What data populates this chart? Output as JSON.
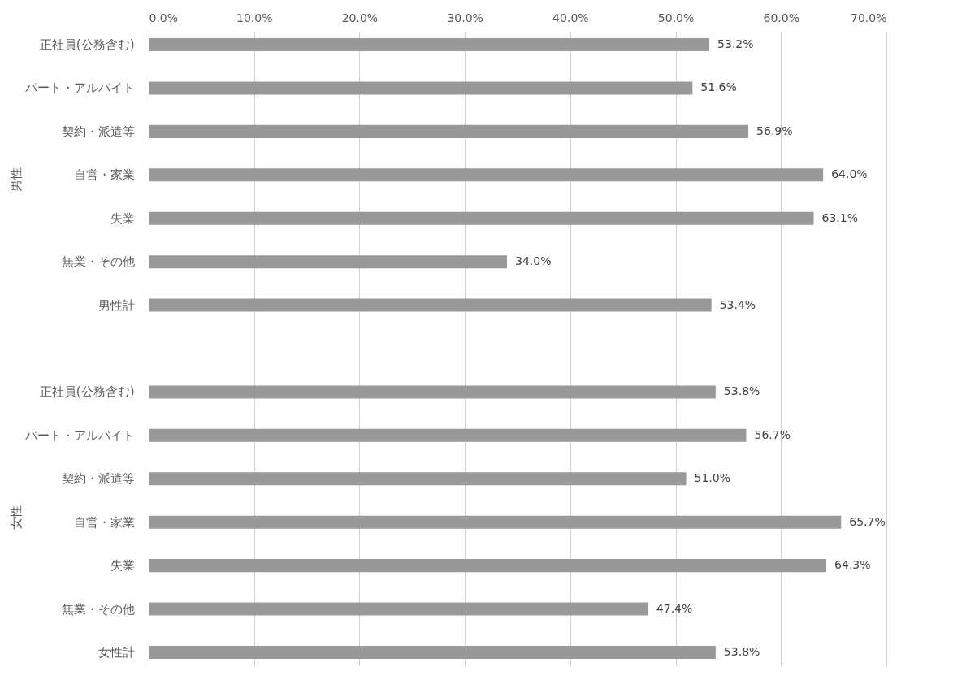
{
  "chart_data": {
    "type": "bar",
    "orientation": "horizontal",
    "categories": [
      "正社員(公務含む)",
      "パート・アルバイト",
      "契約・派遣等",
      "自営・家業",
      "失業",
      "無業・その他",
      "男性計",
      null,
      "正社員(公務含む)",
      "パート・アルバイト",
      "契約・派遣等",
      "自営・家業",
      "失業",
      "無業・その他",
      "女性計"
    ],
    "values": [
      53.2,
      51.6,
      56.9,
      64.0,
      63.1,
      34.0,
      53.4,
      null,
      53.8,
      56.7,
      51.0,
      65.7,
      64.3,
      47.4,
      53.8
    ],
    "value_labels": [
      "53.2%",
      "51.6%",
      "56.9%",
      "64.0%",
      "63.1%",
      "34.0%",
      "53.4%",
      null,
      "53.8%",
      "56.7%",
      "51.0%",
      "65.7%",
      "64.3%",
      "47.4%",
      "53.8%"
    ],
    "color": "#999999",
    "xlim": [
      0,
      70
    ],
    "xticks": [
      {
        "value": 0,
        "label": "0.0%"
      },
      {
        "value": 10,
        "label": "10.0%"
      },
      {
        "value": 20,
        "label": "20.0%"
      },
      {
        "value": 30,
        "label": "30.0%"
      },
      {
        "value": 40,
        "label": "40.0%"
      },
      {
        "value": 50,
        "label": "50.0%"
      },
      {
        "value": 60,
        "label": "60.0%"
      },
      {
        "value": 70,
        "label": "70.0%"
      }
    ],
    "grid": "x",
    "annotations": [
      "男性",
      "女性"
    ]
  }
}
